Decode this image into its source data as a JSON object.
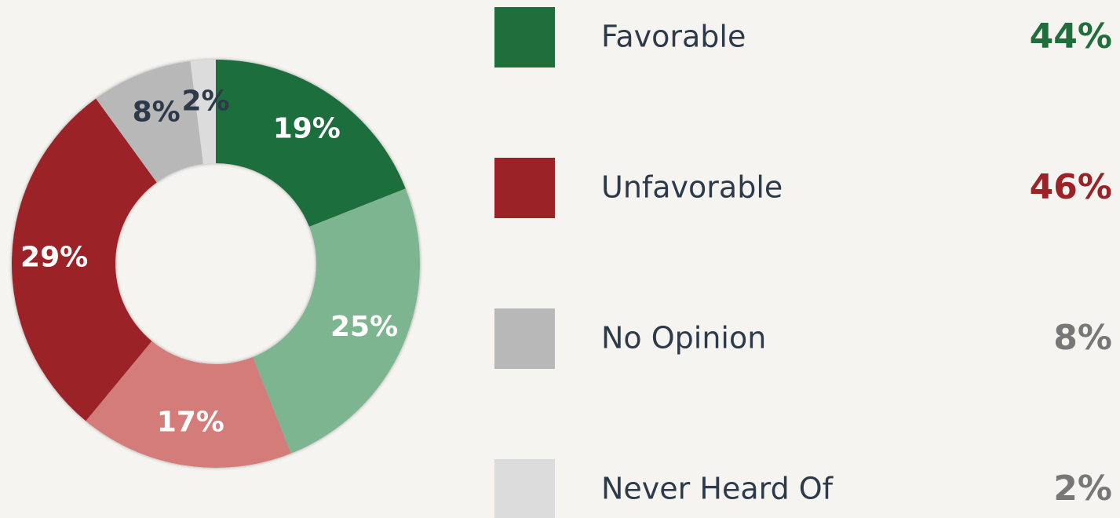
{
  "chart_data": {
    "type": "donut",
    "values": [
      19,
      25,
      17,
      29,
      8,
      2
    ],
    "value_labels": [
      "19%",
      "25%",
      "17%",
      "29%",
      "8%",
      "2%"
    ],
    "colors": [
      "#1f6e3c",
      "#7db591",
      "#d47c7a",
      "#9b2226",
      "#b8b8b8",
      "#dcdcdc"
    ],
    "label_colors": [
      "#ffffff",
      "#ffffff",
      "#ffffff",
      "#ffffff",
      "#2d3a4a",
      "#2d3a4a"
    ],
    "legend": {
      "names": [
        "Favorable",
        "Unfavorable",
        "No Opinion",
        "Never Heard Of"
      ],
      "colors": [
        "#1f6e3c",
        "#9b2226",
        "#b8b8b8",
        "#dcdcdc"
      ],
      "values": [
        44,
        46,
        8,
        2
      ],
      "value_labels": [
        "44%",
        "46%",
        "8%",
        "2%"
      ],
      "value_colors": [
        "#1f6e3c",
        "#9b2226",
        "#777777",
        "#777777"
      ]
    }
  }
}
